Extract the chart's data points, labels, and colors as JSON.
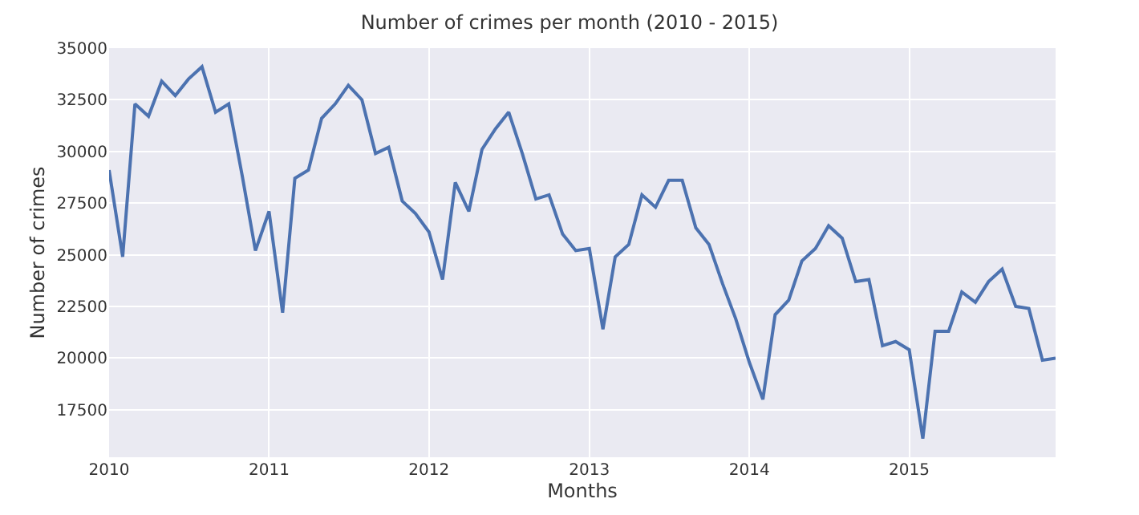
{
  "chart_data": {
    "type": "line",
    "title": "Number of crimes per month (2010 - 2015)",
    "xlabel": "Months",
    "ylabel": "Number of crimes",
    "x": [
      "2010-01",
      "2010-02",
      "2010-03",
      "2010-04",
      "2010-05",
      "2010-06",
      "2010-07",
      "2010-08",
      "2010-09",
      "2010-10",
      "2010-11",
      "2010-12",
      "2011-01",
      "2011-02",
      "2011-03",
      "2011-04",
      "2011-05",
      "2011-06",
      "2011-07",
      "2011-08",
      "2011-09",
      "2011-10",
      "2011-11",
      "2011-12",
      "2012-01",
      "2012-02",
      "2012-03",
      "2012-04",
      "2012-05",
      "2012-06",
      "2012-07",
      "2012-08",
      "2012-09",
      "2012-10",
      "2012-11",
      "2012-12",
      "2013-01",
      "2013-02",
      "2013-03",
      "2013-04",
      "2013-05",
      "2013-06",
      "2013-07",
      "2013-08",
      "2013-09",
      "2013-10",
      "2013-11",
      "2013-12",
      "2014-01",
      "2014-02",
      "2014-03",
      "2014-04",
      "2014-05",
      "2014-06",
      "2014-07",
      "2014-08",
      "2014-09",
      "2014-10",
      "2014-11",
      "2014-12",
      "2015-01",
      "2015-02",
      "2015-03",
      "2015-04",
      "2015-05",
      "2015-06",
      "2015-07",
      "2015-08",
      "2015-09",
      "2015-10",
      "2015-11",
      "2015-12"
    ],
    "series": [
      {
        "color": "#4c72b0",
        "values": [
          29100,
          24900,
          32300,
          31700,
          33400,
          32700,
          33500,
          34100,
          31900,
          32300,
          28800,
          25200,
          27100,
          22200,
          28700,
          29100,
          31600,
          32300,
          33200,
          32500,
          29900,
          30200,
          27600,
          27000,
          26100,
          23800,
          28500,
          27100,
          30100,
          31100,
          31900,
          29900,
          27700,
          27900,
          26000,
          25200,
          25300,
          21400,
          24900,
          25500,
          27900,
          27300,
          28600,
          28600,
          26300,
          25500,
          23600,
          21900,
          19800,
          18000,
          22100,
          22800,
          24700,
          25300,
          26400,
          25800,
          23700,
          23800,
          20600,
          20800,
          20400,
          16100,
          21300,
          21300,
          23200,
          22700,
          23700,
          24300,
          22500,
          22400,
          19900,
          20000
        ]
      }
    ],
    "xlim": [
      "2010-01",
      "2015-12"
    ],
    "xticks": [
      {
        "value": "2010-01",
        "label": "2010"
      },
      {
        "value": "2011-01",
        "label": "2011"
      },
      {
        "value": "2012-01",
        "label": "2012"
      },
      {
        "value": "2013-01",
        "label": "2013"
      },
      {
        "value": "2014-01",
        "label": "2014"
      },
      {
        "value": "2015-01",
        "label": "2015"
      }
    ],
    "ylim": [
      15200,
      35000
    ],
    "yticks": [
      17500,
      20000,
      22500,
      25000,
      27500,
      30000,
      32500,
      35000
    ],
    "grid": true,
    "marker": "none",
    "line_style": "solid"
  }
}
